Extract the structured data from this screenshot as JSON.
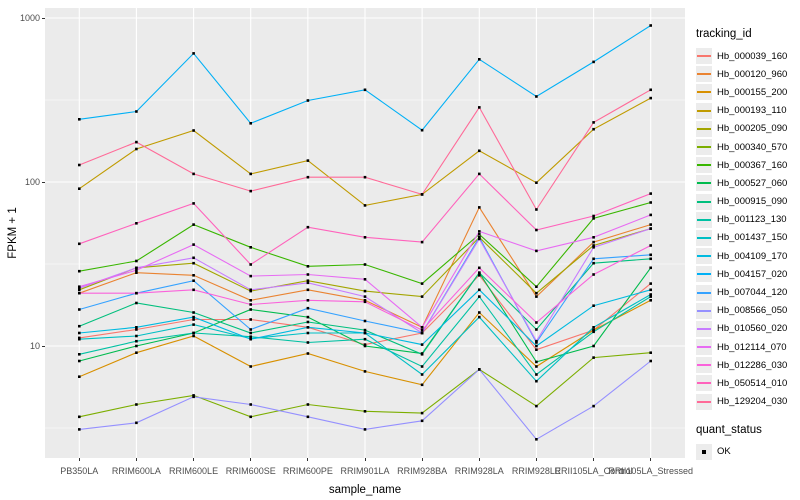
{
  "chart_data": {
    "type": "line",
    "title": "",
    "xlabel": "sample_name",
    "ylabel": "FPKM + 1",
    "y_scale": "log10",
    "ylim": [
      2.1,
      1150
    ],
    "y_tick_values": [
      10,
      100,
      1000
    ],
    "y_tick_labels": [
      "10",
      "100",
      "1000"
    ],
    "y_minor_values": [
      3.1623,
      31.623,
      316.23
    ],
    "grid": "on",
    "panel_background": "#EBEBEB",
    "gridline_color": "#FFFFFF",
    "point_shape": "filled-square",
    "point_color": "#000000",
    "legend_position": "right",
    "categories": [
      "PB350LA",
      "RRIM600LA",
      "RRIM600LE",
      "RRIM600SE",
      "RRIM600PE",
      "RRIM901LA",
      "RRIM928BA",
      "RRIM928LA",
      "RRIM928LE",
      "RRII105LA_Control",
      "RRII105LA_Stressed"
    ],
    "series": [
      {
        "name": "Hb_000039_160",
        "color": "#F8766D",
        "values": [
          11.2,
          12.6,
          14.5,
          14.5,
          13,
          10.2,
          12,
          27,
          9.5,
          12.5,
          24
        ]
      },
      {
        "name": "Hb_000120_960",
        "color": "#EA8331",
        "values": [
          21,
          28,
          27,
          19,
          22,
          19,
          13,
          70,
          20,
          43,
          55
        ]
      },
      {
        "name": "Hb_000155_200",
        "color": "#D89000",
        "values": [
          6.5,
          9.1,
          11.5,
          7.5,
          9,
          7,
          5.8,
          16,
          7.5,
          12.5,
          19
        ]
      },
      {
        "name": "Hb_000193_110",
        "color": "#C09B00",
        "values": [
          91,
          159,
          206,
          112,
          135,
          72,
          84,
          155,
          99,
          210,
          325
        ]
      },
      {
        "name": "Hb_000205_090",
        "color": "#A3A500",
        "values": [
          22,
          30,
          32,
          21.6,
          25,
          21.6,
          20,
          46,
          21,
          41,
          52
        ]
      },
      {
        "name": "Hb_000340_570",
        "color": "#7CAE00",
        "values": [
          3.7,
          4.4,
          5,
          3.7,
          4.4,
          4,
          3.9,
          7.2,
          4.3,
          8.5,
          9.1
        ]
      },
      {
        "name": "Hb_000367_160",
        "color": "#39B600",
        "values": [
          28.6,
          33,
          55,
          40,
          30.6,
          31.4,
          24,
          48,
          23,
          60,
          75
        ]
      },
      {
        "name": "Hb_000527_060",
        "color": "#00BB4E",
        "values": [
          8.1,
          10,
          12,
          16.7,
          15,
          10,
          9,
          28,
          8,
          10,
          30
        ]
      },
      {
        "name": "Hb_000915_090",
        "color": "#00BF7D",
        "values": [
          13.2,
          18.3,
          16,
          12,
          14,
          12.5,
          8.9,
          28,
          12.6,
          32,
          34
        ]
      },
      {
        "name": "Hb_001123_130",
        "color": "#00C1A3",
        "values": [
          8.9,
          10.7,
          12,
          11.4,
          10.5,
          11,
          7.5,
          20,
          6.7,
          12.2,
          20
        ]
      },
      {
        "name": "Hb_001437_150",
        "color": "#00BFC4",
        "values": [
          11,
          11.5,
          13.5,
          11.1,
          12,
          12,
          6.7,
          15,
          6.1,
          13,
          20.6
        ]
      },
      {
        "name": "Hb_004109_170",
        "color": "#00BAE0",
        "values": [
          12,
          13,
          15,
          11,
          13,
          12,
          10.2,
          22,
          10,
          17.6,
          22
        ]
      },
      {
        "name": "Hb_004157_020",
        "color": "#00B0F6",
        "values": [
          241,
          269,
          608,
          228,
          314,
          365,
          207,
          560,
          332,
          540,
          900
        ]
      },
      {
        "name": "Hb_007044_120",
        "color": "#35A2FF",
        "values": [
          16.7,
          21,
          25,
          12.6,
          17,
          14.2,
          12,
          46,
          10.5,
          34,
          36
        ]
      },
      {
        "name": "Hb_008566_050",
        "color": "#9590FF",
        "values": [
          3.1,
          3.4,
          4.9,
          4.4,
          3.7,
          3.1,
          3.5,
          7.2,
          2.7,
          4.3,
          8.1
        ]
      },
      {
        "name": "Hb_010560_020",
        "color": "#C77CFF",
        "values": [
          22.5,
          30,
          34.5,
          22,
          24.3,
          20,
          12,
          45,
          10.7,
          40,
          52
        ]
      },
      {
        "name": "Hb_012114_070",
        "color": "#E76BF3",
        "values": [
          23,
          29,
          41.5,
          26.7,
          27.3,
          25.5,
          13,
          50,
          38,
          46,
          63
        ]
      },
      {
        "name": "Hb_012286_030",
        "color": "#FA62DB",
        "values": [
          21,
          21,
          22,
          17.9,
          19,
          18.6,
          12.5,
          30,
          13.9,
          27.3,
          41
        ]
      },
      {
        "name": "Hb_050514_010",
        "color": "#FF62BC",
        "values": [
          42,
          56,
          74,
          31.4,
          53,
          46,
          43,
          112,
          51,
          62,
          85
        ]
      },
      {
        "name": "Hb_129204_030",
        "color": "#FF6A98",
        "values": [
          127,
          175,
          112,
          88,
          107,
          107,
          84,
          285,
          68,
          231,
          365
        ]
      }
    ]
  },
  "legend": {
    "tracking_title": "tracking_id",
    "quant_title": "quant_status",
    "quant_value": "OK"
  }
}
